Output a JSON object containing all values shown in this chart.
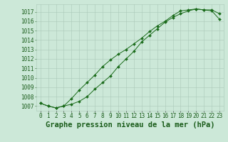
{
  "title": "Graphe pression niveau de la mer (hPa)",
  "x_labels": [
    "0",
    "1",
    "2",
    "3",
    "4",
    "5",
    "6",
    "7",
    "8",
    "9",
    "10",
    "11",
    "12",
    "13",
    "14",
    "15",
    "16",
    "17",
    "18",
    "19",
    "20",
    "21",
    "22",
    "23"
  ],
  "ylim": [
    1006.5,
    1017.8
  ],
  "xlim": [
    -0.5,
    23.5
  ],
  "yticks": [
    1007,
    1008,
    1009,
    1010,
    1011,
    1012,
    1013,
    1014,
    1015,
    1016,
    1017
  ],
  "line1_x": [
    0,
    1,
    2,
    3,
    4,
    5,
    6,
    7,
    8,
    9,
    10,
    11,
    12,
    13,
    14,
    15,
    16,
    17,
    18,
    19,
    20,
    21,
    22,
    23
  ],
  "line1_y": [
    1007.3,
    1007.0,
    1006.8,
    1007.0,
    1007.8,
    1008.7,
    1009.5,
    1010.3,
    1011.2,
    1011.9,
    1012.5,
    1013.0,
    1013.6,
    1014.2,
    1014.9,
    1015.5,
    1016.0,
    1016.6,
    1017.1,
    1017.2,
    1017.3,
    1017.2,
    1017.2,
    1016.8
  ],
  "line2_x": [
    0,
    1,
    2,
    3,
    4,
    5,
    6,
    7,
    8,
    9,
    10,
    11,
    12,
    13,
    14,
    15,
    16,
    17,
    18,
    19,
    20,
    21,
    22,
    23
  ],
  "line2_y": [
    1007.3,
    1007.0,
    1006.8,
    1007.0,
    1007.2,
    1007.5,
    1008.0,
    1008.8,
    1009.5,
    1010.2,
    1011.2,
    1012.0,
    1012.8,
    1013.8,
    1014.5,
    1015.2,
    1015.9,
    1016.4,
    1016.8,
    1017.1,
    1017.3,
    1017.2,
    1017.1,
    1016.2
  ],
  "line_color": "#1a6b1a",
  "bg_color": "#cce8d8",
  "grid_color": "#aac8b8",
  "text_color": "#1a5c1a",
  "title_fontsize": 7.5,
  "tick_fontsize": 5.5
}
